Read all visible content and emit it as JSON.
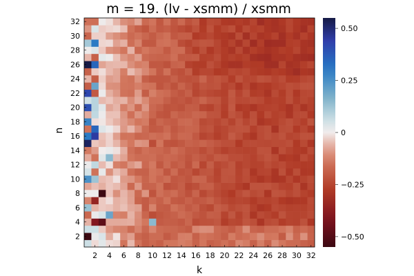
{
  "chart_data": {
    "type": "heatmap",
    "title": "m = 19. (lv - xsmm) / xsmm",
    "xlabel": "k",
    "ylabel": "n",
    "x_range": [
      1,
      32
    ],
    "y_range": [
      1,
      32
    ],
    "x_ticks": [
      "2",
      "4",
      "6",
      "8",
      "10",
      "12",
      "14",
      "16",
      "18",
      "20",
      "22",
      "24",
      "26",
      "28",
      "30",
      "32"
    ],
    "y_ticks": [
      "2",
      "4",
      "6",
      "8",
      "10",
      "12",
      "14",
      "16",
      "18",
      "20",
      "22",
      "24",
      "26",
      "28",
      "30",
      "32"
    ],
    "colorbar": {
      "min": -0.55,
      "max": 0.55,
      "ticks": [
        {
          "value": 0.5,
          "label": "0.50"
        },
        {
          "value": 0.25,
          "label": "0.25"
        },
        {
          "value": 0,
          "label": "0"
        },
        {
          "value": -0.25,
          "label": "−0.25"
        },
        {
          "value": -0.5,
          "label": "−0.50"
        }
      ],
      "colormap": "balance"
    },
    "grid": false,
    "notable_cells": [
      {
        "k": 1,
        "n": 26,
        "value": 0.55
      },
      {
        "k": 1,
        "n": 15,
        "value": 0.52
      },
      {
        "k": 2,
        "n": 16,
        "value": 0.45
      },
      {
        "k": 1,
        "n": 22,
        "value": 0.42
      },
      {
        "k": 1,
        "n": 20,
        "value": 0.4
      },
      {
        "k": 2,
        "n": 26,
        "value": 0.35
      },
      {
        "k": 2,
        "n": 29,
        "value": 0.3
      },
      {
        "k": 1,
        "n": 16,
        "value": 0.3
      },
      {
        "k": 1,
        "n": 18,
        "value": 0.28
      },
      {
        "k": 1,
        "n": 10,
        "value": 0.25
      },
      {
        "k": 2,
        "n": 17,
        "value": 0.35
      },
      {
        "k": 2,
        "n": 23,
        "value": 0.2
      },
      {
        "k": 1,
        "n": 2,
        "value": -0.55
      },
      {
        "k": 3,
        "n": 8,
        "value": -0.55
      },
      {
        "k": 3,
        "n": 4,
        "value": -0.48
      },
      {
        "k": 2,
        "n": 7,
        "value": -0.35
      },
      {
        "k": 2,
        "n": 4,
        "value": -0.4
      },
      {
        "k": 4,
        "n": 5,
        "value": 0.2
      },
      {
        "k": 10,
        "n": 4,
        "value": 0.15
      },
      {
        "k": 4,
        "n": 13,
        "value": 0.15
      }
    ]
  }
}
